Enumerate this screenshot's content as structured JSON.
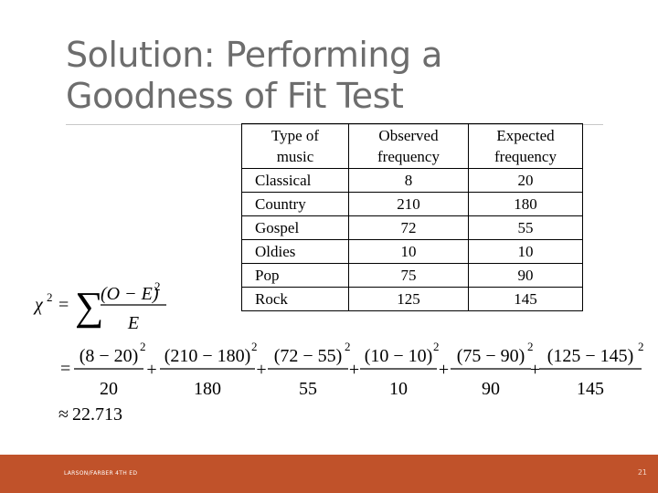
{
  "slide": {
    "title_line1": "Solution: Performing a",
    "title_line2": "Goodness of Fit Test"
  },
  "table": {
    "headers": [
      [
        "Type of",
        "music"
      ],
      [
        "Observed",
        "frequency"
      ],
      [
        "Expected",
        "frequency"
      ]
    ],
    "rows": [
      [
        "Classical",
        "8",
        "20"
      ],
      [
        "Country",
        "210",
        "180"
      ],
      [
        "Gospel",
        "72",
        "55"
      ],
      [
        "Oldies",
        "10",
        "10"
      ],
      [
        "Pop",
        "75",
        "90"
      ],
      [
        "Rock",
        "125",
        "145"
      ]
    ]
  },
  "formula": {
    "lhs": "χ",
    "lhs_sup": "2",
    "equals": "=",
    "sigma": "∑",
    "numerator": "(O − E)",
    "numerator_sup": "2",
    "denominator": "E"
  },
  "calculation": {
    "equals": "=",
    "plus": "+",
    "terms": [
      {
        "num": "(8 − 20)",
        "den": "20"
      },
      {
        "num": "(210 − 180)",
        "den": "180"
      },
      {
        "num": "(72 − 55)",
        "den": "55"
      },
      {
        "num": "(10 − 10)",
        "den": "10"
      },
      {
        "num": "(75 − 90)",
        "den": "90"
      },
      {
        "num": "(125 − 145)",
        "den": "145"
      }
    ],
    "sup": "2",
    "approx_symbol": "≈",
    "result": "22.713"
  },
  "footer": {
    "left_text": "LARSON/FARBER 4TH ED",
    "page_number": "21"
  },
  "colors": {
    "footer_bg": "#c0522a",
    "title": "#6d6d6d"
  }
}
